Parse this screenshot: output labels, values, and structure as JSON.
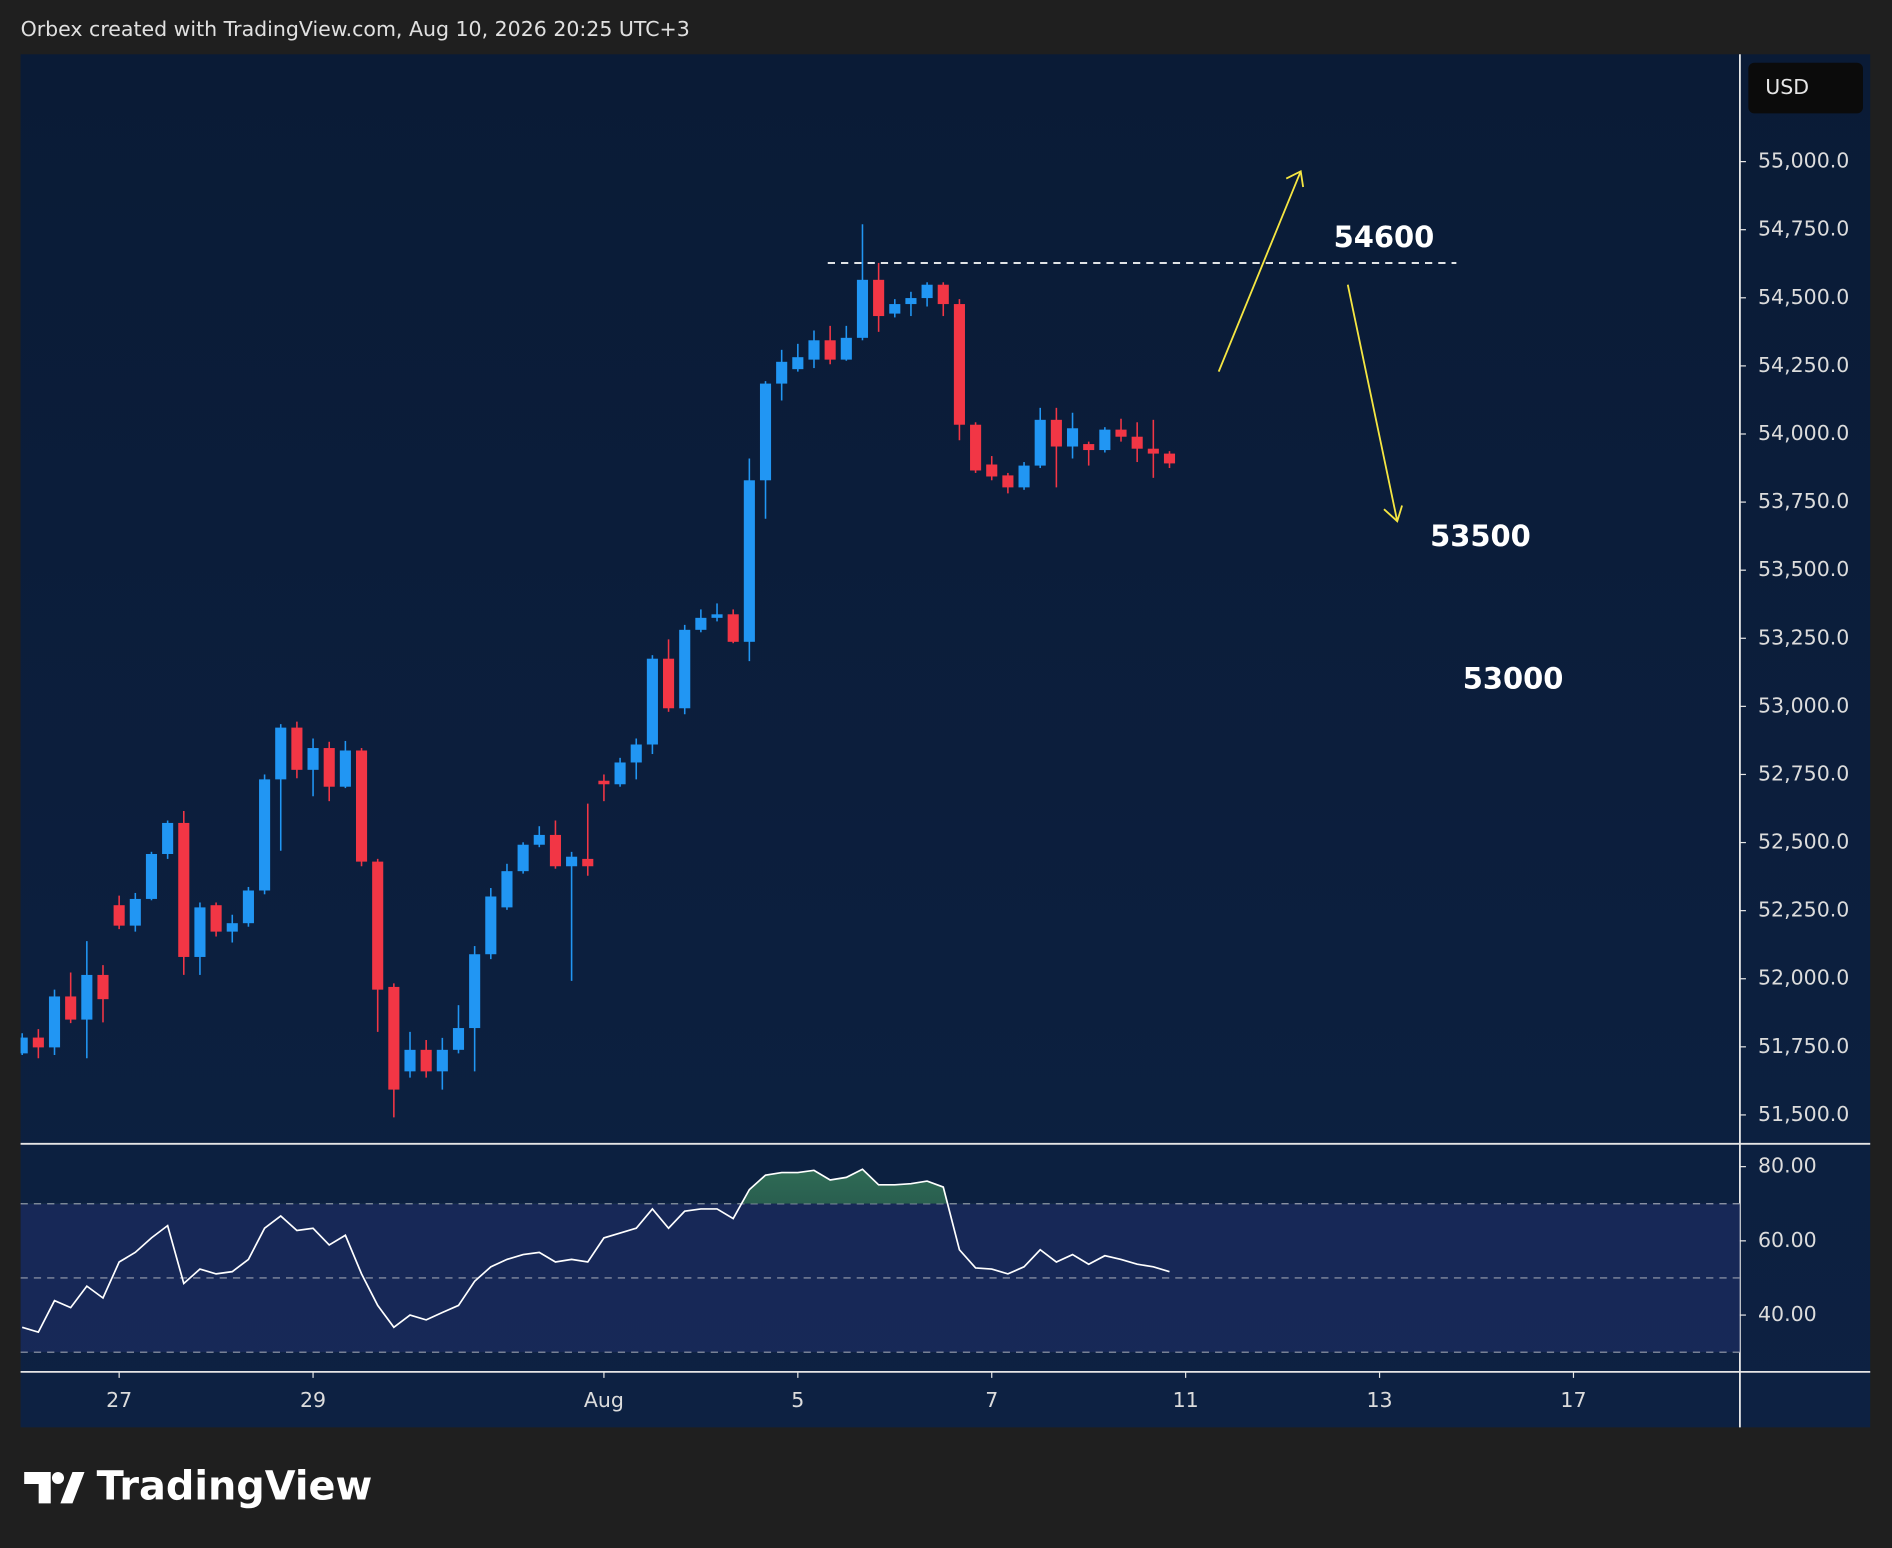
{
  "header": {
    "text": "Orbex created with TradingView.com, Aug 10, 2026 20:25 UTC+3"
  },
  "currency": "USD",
  "brand": "TradingView",
  "chart_data": [
    {
      "type": "candlestick",
      "up_color": "#2196f3",
      "down_color": "#f23645",
      "open": [
        51726,
        51784,
        51748,
        51935,
        51850,
        52014,
        52270,
        52195,
        52293,
        52458,
        52572,
        52080,
        52270,
        52173,
        52204,
        52324,
        52732,
        52922,
        52767,
        52847,
        52705,
        52838,
        52430,
        51970,
        51660,
        51739,
        51660,
        51739,
        51819,
        52090,
        52262,
        52395,
        52492,
        52528,
        52413,
        52440,
        52727,
        52714,
        52794,
        52860,
        53175,
        52993,
        53281,
        53325,
        53338,
        53237,
        53830,
        54185,
        54238,
        54273,
        54344,
        54273,
        54353,
        54566,
        54442,
        54477,
        54499,
        54548,
        54477,
        54034,
        53888,
        53848,
        53804,
        53884,
        54052,
        53954,
        53963,
        53941,
        54016,
        53990,
        53946,
        53928
      ],
      "high": [
        51800,
        51815,
        51960,
        52023,
        52138,
        52050,
        52305,
        52315,
        52466,
        52581,
        52616,
        52280,
        52280,
        52235,
        52337,
        52750,
        52935,
        52944,
        52882,
        52870,
        52873,
        52847,
        52440,
        51983,
        51805,
        51775,
        51783,
        51903,
        52120,
        52333,
        52422,
        52501,
        52560,
        52581,
        52466,
        52643,
        52750,
        52811,
        52882,
        53188,
        53246,
        53299,
        53356,
        53378,
        53356,
        53910,
        54194,
        54309,
        54331,
        54380,
        54397,
        54397,
        54770,
        54628,
        54495,
        54522,
        54557,
        54557,
        54495,
        54043,
        53919,
        53857,
        53897,
        54096,
        54096,
        54078,
        53972,
        54025,
        54056,
        54043,
        54052,
        53937
      ],
      "low": [
        51720,
        51708,
        51720,
        51837,
        51708,
        51840,
        52182,
        52173,
        52288,
        52440,
        52014,
        52014,
        52155,
        52133,
        52191,
        52310,
        52470,
        52736,
        52670,
        52652,
        52700,
        52413,
        51805,
        51491,
        51637,
        51637,
        51593,
        51726,
        51660,
        52072,
        52253,
        52386,
        52483,
        52404,
        51992,
        52378,
        52652,
        52705,
        52732,
        52825,
        52980,
        52971,
        53272,
        53312,
        53232,
        53166,
        53689,
        54123,
        54229,
        54242,
        54256,
        54269,
        54344,
        54375,
        54428,
        54433,
        54468,
        54433,
        53977,
        53857,
        53830,
        53782,
        53795,
        53875,
        53804,
        53910,
        53884,
        53932,
        53972,
        53897,
        53839,
        53875
      ],
      "close": [
        51784,
        51748,
        51935,
        51850,
        52014,
        51925,
        52195,
        52293,
        52458,
        52572,
        52080,
        52262,
        52173,
        52204,
        52324,
        52732,
        52922,
        52767,
        52847,
        52705,
        52838,
        52430,
        51960,
        51593,
        51739,
        51660,
        51739,
        51819,
        52090,
        52302,
        52395,
        52492,
        52528,
        52413,
        52448,
        52413,
        52714,
        52794,
        52860,
        53175,
        52993,
        53281,
        53325,
        53338,
        53237,
        53830,
        54185,
        54265,
        54282,
        54344,
        54273,
        54353,
        54566,
        54433,
        54477,
        54499,
        54548,
        54477,
        54034,
        53866,
        53844,
        53804,
        53884,
        54052,
        53954,
        54021,
        53941,
        54016,
        53990,
        53946,
        53928,
        53892
      ],
      "xlim": [
        -0.1,
        106.3
      ],
      "xticks": [
        {
          "value": 6,
          "label": "27"
        },
        {
          "value": 18,
          "label": "29"
        },
        {
          "value": 36,
          "label": "Aug"
        },
        {
          "value": 48,
          "label": "5"
        },
        {
          "value": 60,
          "label": "7"
        },
        {
          "value": 72,
          "label": "11"
        },
        {
          "value": 84,
          "label": "13"
        },
        {
          "value": 96,
          "label": "17"
        }
      ],
      "ylim": [
        51394,
        55394
      ],
      "yticks": [
        {
          "value": 51500,
          "label": "51,500.0"
        },
        {
          "value": 51750,
          "label": "51,750.0"
        },
        {
          "value": 52000,
          "label": "52,000.0"
        },
        {
          "value": 52250,
          "label": "52,250.0"
        },
        {
          "value": 52500,
          "label": "52,500.0"
        },
        {
          "value": 52750,
          "label": "52,750.0"
        },
        {
          "value": 53000,
          "label": "53,000.0"
        },
        {
          "value": 53250,
          "label": "53,250.0"
        },
        {
          "value": 53500,
          "label": "53,500.0"
        },
        {
          "value": 53750,
          "label": "53,750.0"
        },
        {
          "value": 54000,
          "label": "54,000.0"
        },
        {
          "value": 54250,
          "label": "54,250.0"
        },
        {
          "value": 54500,
          "label": "54,500.0"
        },
        {
          "value": 54750,
          "label": "54,750.0"
        },
        {
          "value": 55000,
          "label": "55,000.0"
        }
      ],
      "annotations": [
        {
          "text": "54600"
        },
        {
          "text": "53500"
        },
        {
          "text": "53000"
        }
      ]
    },
    {
      "type": "line",
      "color": "#ffffff",
      "values": [
        36.7,
        35.4,
        43.9,
        42.0,
        47.8,
        44.6,
        54.3,
        56.9,
        60.8,
        64.1,
        48.5,
        52.4,
        51.1,
        51.7,
        55.0,
        63.4,
        66.7,
        62.8,
        63.4,
        58.9,
        61.5,
        51.1,
        42.6,
        36.7,
        40.0,
        38.7,
        40.7,
        42.6,
        49.1,
        53.0,
        55.0,
        56.3,
        56.9,
        54.3,
        55.0,
        54.3,
        60.8,
        62.1,
        63.4,
        68.6,
        63.4,
        68.0,
        68.6,
        68.6,
        66.0,
        73.8,
        77.7,
        78.4,
        78.4,
        79.0,
        76.4,
        77.1,
        79.3,
        75.1,
        75.1,
        75.4,
        76.1,
        74.5,
        57.6,
        52.7,
        52.4,
        51.1,
        53.0,
        57.6,
        54.3,
        56.3,
        53.7,
        56.0,
        55.0,
        53.7,
        53.0,
        51.7
      ],
      "ylim": [
        24.7,
        85.5
      ],
      "yticks": [
        {
          "value": 40,
          "label": "40.00"
        },
        {
          "value": 60,
          "label": "60.00"
        },
        {
          "value": 80,
          "label": "80.00"
        }
      ],
      "bands": [
        30,
        50,
        70
      ]
    }
  ]
}
